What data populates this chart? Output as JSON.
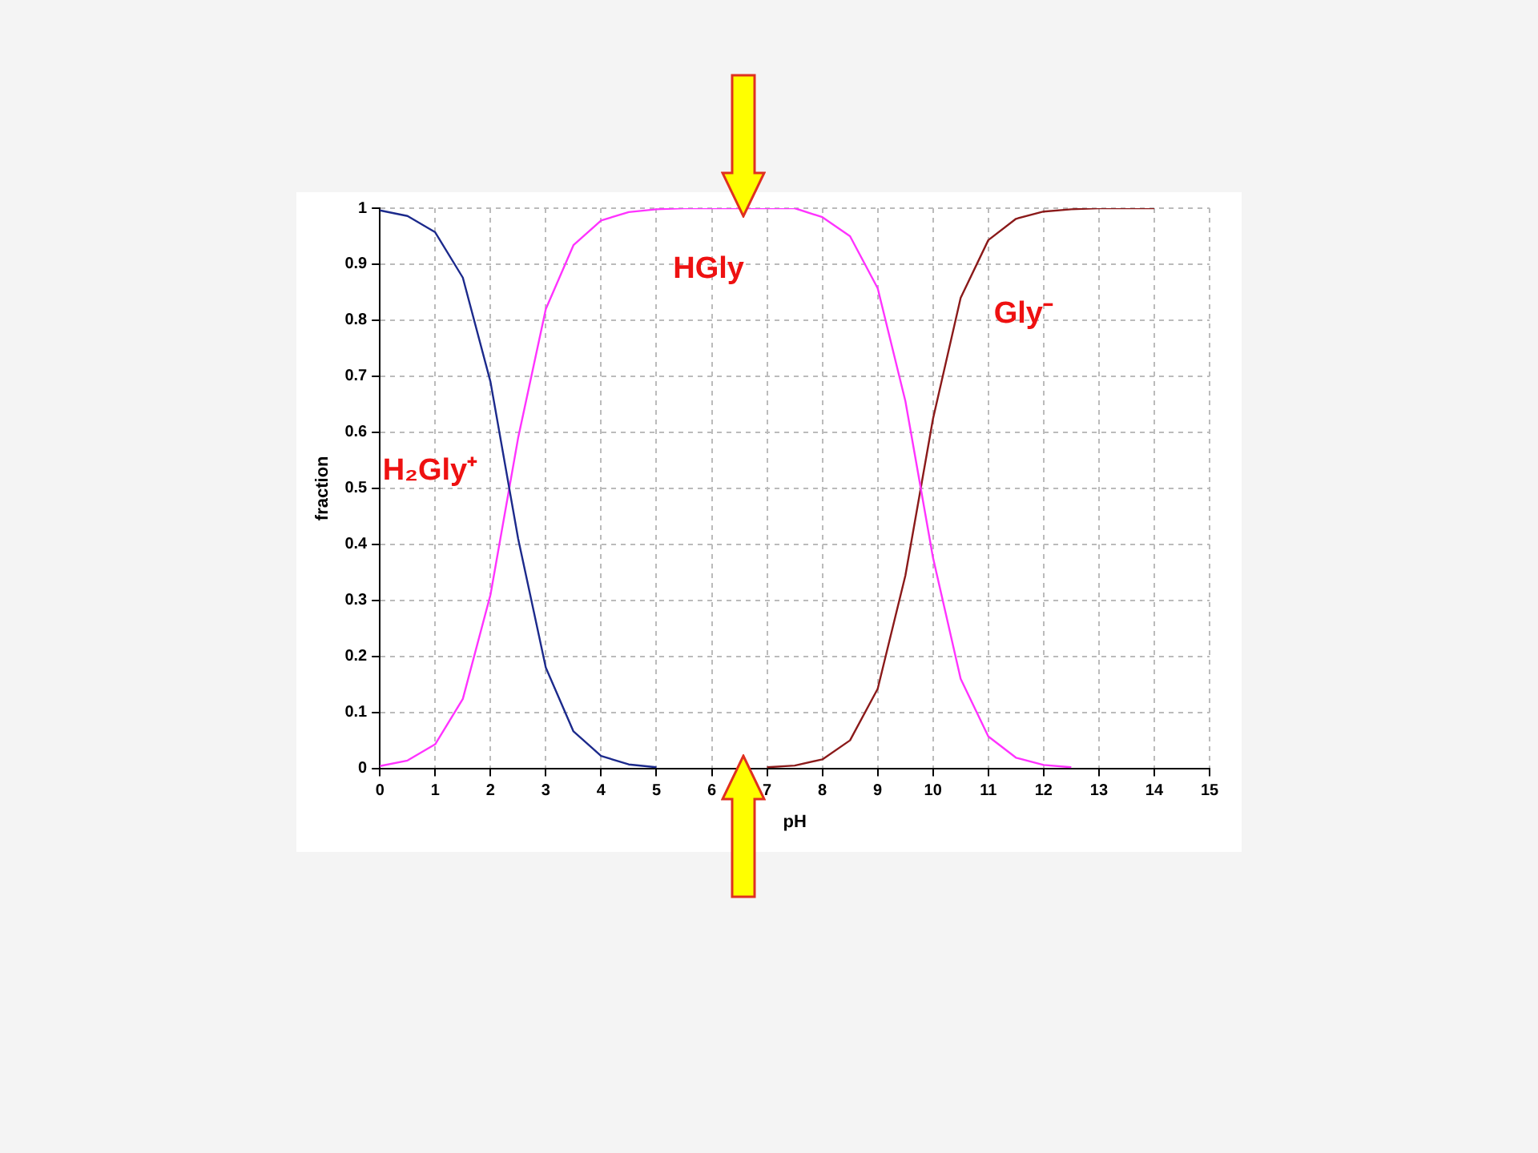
{
  "chart_data": {
    "type": "line",
    "xlabel": "pH",
    "ylabel": "fraction",
    "x": [
      0,
      0.5,
      1,
      1.5,
      2,
      2.5,
      3,
      3.5,
      4,
      4.5,
      5,
      5.5,
      6,
      6.5,
      7,
      7.5,
      8,
      8.5,
      9,
      9.5,
      10,
      10.5,
      11,
      11.5,
      12,
      12.5,
      13,
      13.5,
      14
    ],
    "series": [
      {
        "name": "H₂Gly⁺",
        "color": "#1c2a8c",
        "values": [
          0.996,
          0.986,
          0.957,
          0.876,
          0.69,
          0.41,
          0.18,
          0.066,
          0.022,
          0.007,
          0.002,
          null,
          null,
          null,
          null,
          null,
          null,
          null,
          null,
          null,
          null,
          null,
          null,
          null,
          null,
          null,
          null,
          null,
          null
        ]
      },
      {
        "name": "HGly",
        "color": "#ff33ff",
        "values": [
          0.004,
          0.014,
          0.043,
          0.124,
          0.31,
          0.59,
          0.82,
          0.934,
          0.978,
          0.993,
          0.998,
          1,
          1,
          1,
          1,
          1,
          0.984,
          0.95,
          0.857,
          0.656,
          0.376,
          0.16,
          0.057,
          0.019,
          0.006,
          0.002,
          null,
          null,
          null
        ]
      },
      {
        "name": "Gly⁻",
        "color": "#8b1a1a",
        "values": [
          null,
          null,
          null,
          null,
          null,
          null,
          null,
          null,
          null,
          null,
          null,
          null,
          null,
          null,
          0.002,
          0.005,
          0.016,
          0.05,
          0.142,
          0.344,
          0.624,
          0.84,
          0.943,
          0.981,
          0.994,
          0.998,
          1,
          1,
          1
        ]
      }
    ],
    "xlim": [
      0,
      15
    ],
    "xticks": [
      0,
      1,
      2,
      3,
      4,
      5,
      6,
      7,
      8,
      9,
      10,
      11,
      12,
      13,
      14,
      15
    ],
    "ylim": [
      0,
      1
    ],
    "yticks": [
      0,
      0.1,
      0.2,
      0.3,
      0.4,
      0.5,
      0.6,
      0.7,
      0.8,
      0.9,
      1
    ],
    "grid": true,
    "legend": false,
    "marker": "none",
    "line_style": "solid"
  }
}
